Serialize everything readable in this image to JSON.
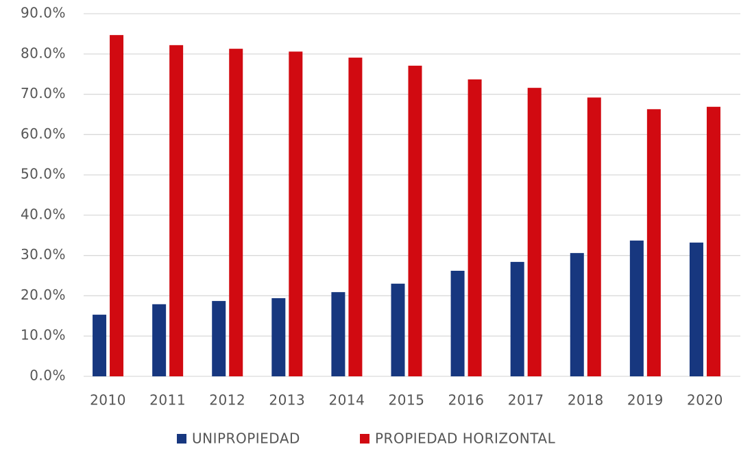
{
  "chart_data": {
    "type": "bar",
    "categories": [
      "2010",
      "2011",
      "2012",
      "2013",
      "2014",
      "2015",
      "2016",
      "2017",
      "2018",
      "2019",
      "2020"
    ],
    "series": [
      {
        "name": "UNIPROPIEDAD",
        "color": "#17377f",
        "values": [
          15.3,
          17.9,
          18.7,
          19.4,
          20.9,
          23.0,
          26.2,
          28.4,
          30.6,
          33.7,
          33.2
        ]
      },
      {
        "name": "PROPIEDAD HORIZONTAL",
        "color": "#d10a11",
        "values": [
          84.7,
          82.2,
          81.3,
          80.6,
          79.1,
          77.1,
          73.7,
          71.6,
          69.2,
          66.3,
          66.9
        ]
      }
    ],
    "ylim": [
      0,
      90
    ],
    "yticks": [
      {
        "value": 0,
        "label": "0.0%"
      },
      {
        "value": 10,
        "label": "10.0%"
      },
      {
        "value": 20,
        "label": "20.0%"
      },
      {
        "value": 30,
        "label": "30.0%"
      },
      {
        "value": 40,
        "label": "40.0%"
      },
      {
        "value": 50,
        "label": "50.0%"
      },
      {
        "value": 60,
        "label": "60.0%"
      },
      {
        "value": 70,
        "label": "70.0%"
      },
      {
        "value": 80,
        "label": "80.0%"
      },
      {
        "value": 90,
        "label": "90.0%"
      }
    ],
    "grid": true,
    "legend": "bottom"
  }
}
